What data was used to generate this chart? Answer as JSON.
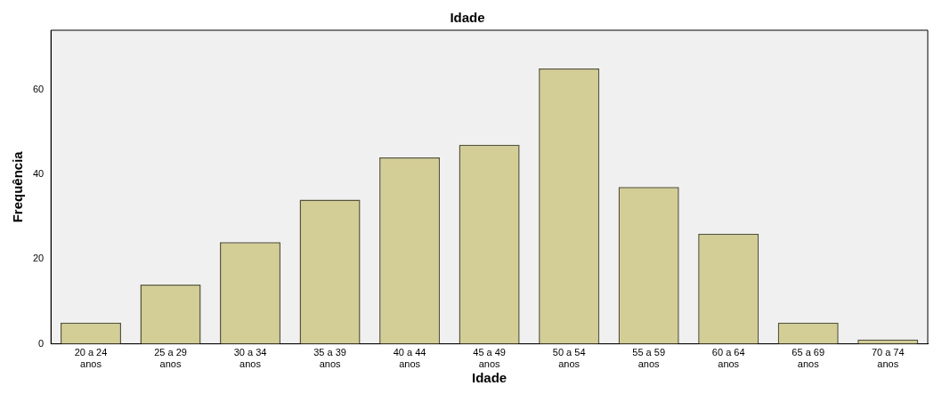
{
  "chart_data": {
    "type": "bar",
    "title": "Idade",
    "xlabel": "Idade",
    "ylabel": "Frequência",
    "categories": [
      "20 a 24 anos",
      "25 a 29 anos",
      "30 a 34 anos",
      "35 a 39 anos",
      "40 a 44 anos",
      "45 a 49 anos",
      "50 a 54 anos",
      "55 a 59 anos",
      "60 a 64 anos",
      "65 a 69 anos",
      "70 a 74 anos"
    ],
    "values": [
      5,
      14,
      24,
      34,
      44,
      47,
      65,
      37,
      26,
      5,
      1
    ],
    "color": "#d3cd96",
    "ylim": [
      0,
      74
    ],
    "yticks": [
      0,
      20,
      40,
      60
    ],
    "grid": false,
    "legend": false
  }
}
